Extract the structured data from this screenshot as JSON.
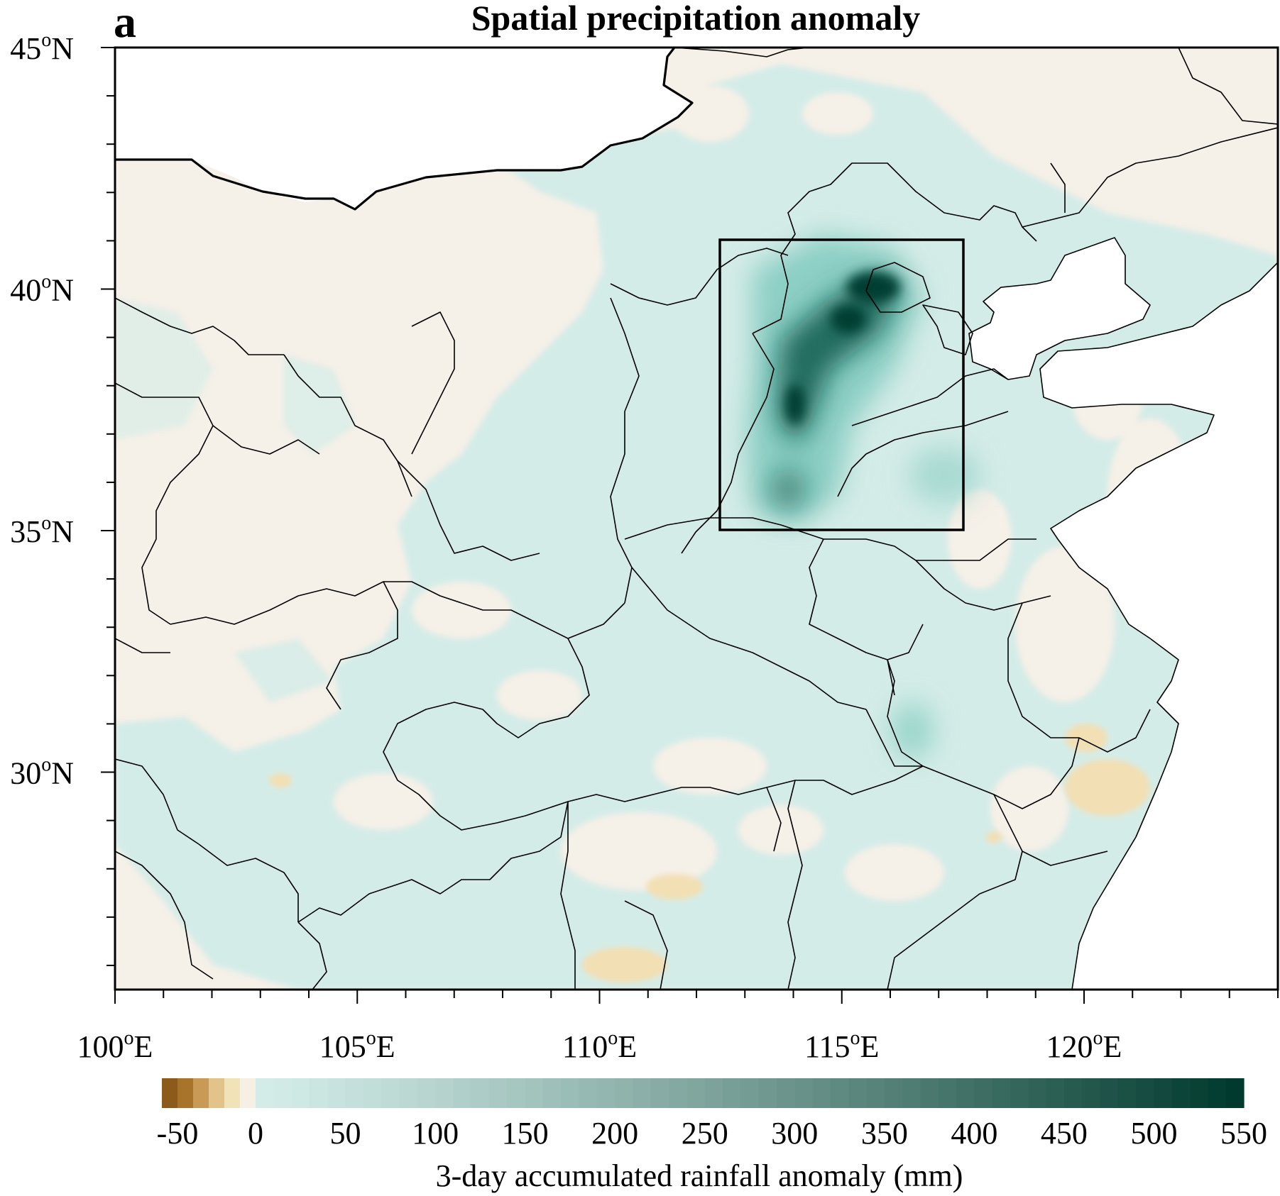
{
  "panel_label": "a",
  "title": "Spatial precipitation anomaly",
  "map": {
    "lat_ticks": [
      {
        "label_main": "45",
        "label_sup": "o",
        "label_dir": "N",
        "lat": 45
      },
      {
        "label_main": "40",
        "label_sup": "o",
        "label_dir": "N",
        "lat": 40
      },
      {
        "label_main": "35",
        "label_sup": "o",
        "label_dir": "N",
        "lat": 35
      },
      {
        "label_main": "30",
        "label_sup": "o",
        "label_dir": "N",
        "lat": 30
      }
    ],
    "lon_ticks": [
      {
        "label_main": "100",
        "label_sup": "o",
        "label_dir": "E",
        "lon": 100
      },
      {
        "label_main": "105",
        "label_sup": "o",
        "label_dir": "E",
        "lon": 105
      },
      {
        "label_main": "110",
        "label_sup": "o",
        "label_dir": "E",
        "lon": 110
      },
      {
        "label_main": "115",
        "label_sup": "o",
        "label_dir": "E",
        "lon": 115
      },
      {
        "label_main": "120",
        "label_sup": "o",
        "label_dir": "E",
        "lon": 120
      }
    ],
    "lon_range": [
      100,
      124
    ],
    "lat_range": [
      25.5,
      45
    ],
    "highlight_box": {
      "lon_min": 112.5,
      "lon_max": 117.5,
      "lat_min": 35,
      "lat_max": 41
    }
  },
  "colorbar": {
    "label": "3-day accumulated rainfall anomaly (mm)",
    "tick_labels": [
      "-50",
      "0",
      "50",
      "100",
      "150",
      "200",
      "250",
      "300",
      "350",
      "400",
      "450",
      "500",
      "550"
    ],
    "neg_colors": [
      "#8c5a1a",
      "#a8732a",
      "#c99a55",
      "#e2c48b",
      "#f2e2b8",
      "#f5efe4"
    ],
    "pos_start_color": "#d3ece8",
    "pos_end_color": "#00392d"
  },
  "colors": {
    "background_land": "#f5f0e8",
    "anomaly_light": "#d4ece8",
    "anomaly_medium": "#8ccfc4",
    "anomaly_dark": "#0e5a4d",
    "anomaly_darkest": "#053d32",
    "dry_tint": "#f3dfb4"
  }
}
